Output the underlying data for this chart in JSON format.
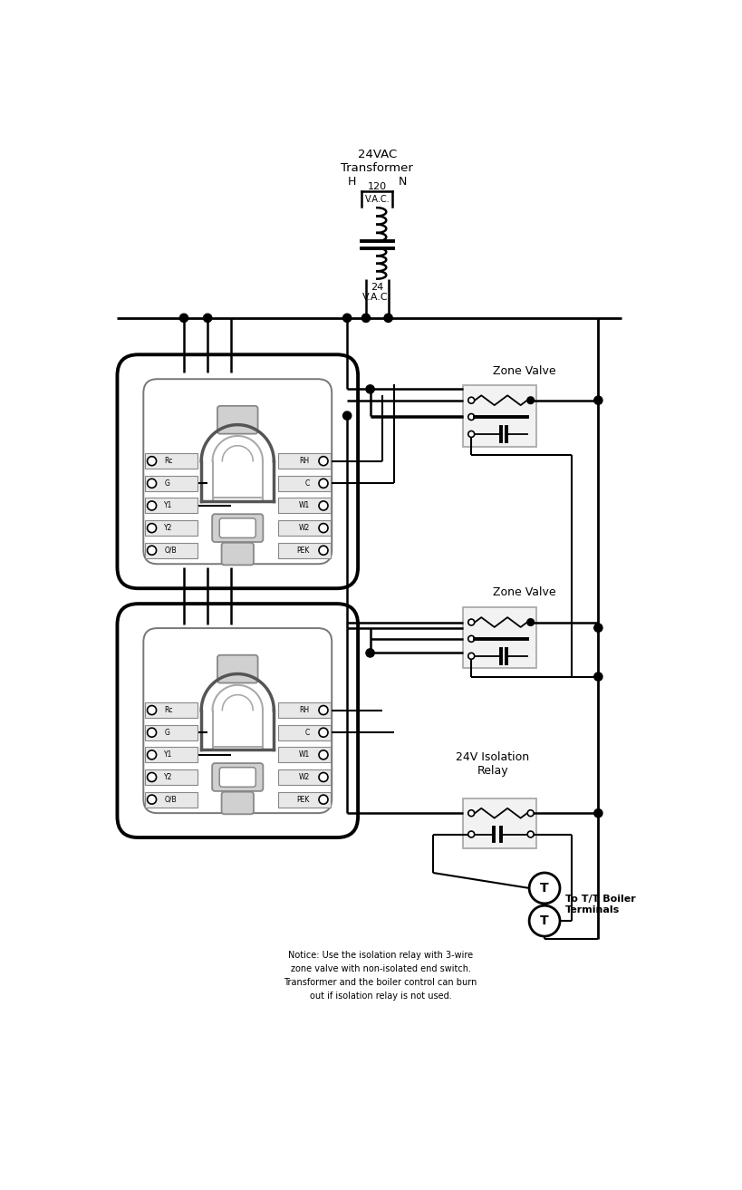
{
  "bg": "#ffffff",
  "lc": "#000000",
  "transformer_label": "24VAC\nTransformer",
  "h_label": "H",
  "n_label": "N",
  "vac120": "120",
  "vac_primary": "V.A.C.",
  "vac24": "24\nV.A.C.",
  "zone_valve1": "Zone Valve",
  "zone_valve2": "Zone Valve",
  "isolation_relay": "24V Isolation\nRelay",
  "boiler_label": "To T/T Boiler\nTerminals",
  "notice": "Notice: Use the isolation relay with 3-wire\nzone valve with non-isolated end switch.\nTransformer and the boiler control can burn\nout if isolation relay is not used.",
  "left_terms": [
    "Rc",
    "G",
    "Y1",
    "Y2",
    "O/B"
  ],
  "right_terms": [
    "RH",
    "C",
    "W1",
    "W2",
    "PEK"
  ],
  "figw": 8.19,
  "figh": 13.13,
  "dpi": 100
}
